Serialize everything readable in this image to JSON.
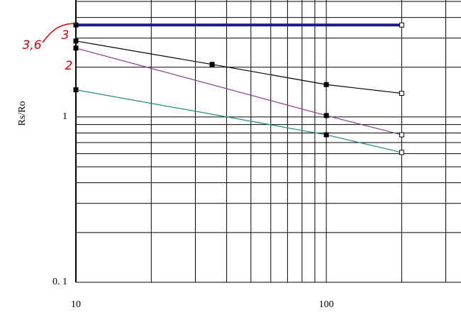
{
  "chart_data": {
    "type": "line",
    "y_label": "Rs/Ro",
    "xlim": [
      10,
      345
    ],
    "ylim": [
      0.1,
      5.1
    ],
    "log_x": true,
    "log_y": true,
    "grid": true,
    "xticks": [
      10,
      100
    ],
    "yticks": [
      {
        "value": 0.1,
        "label": "0. 1"
      },
      1
    ],
    "xgrid": [
      10,
      20,
      30,
      40,
      50,
      60,
      70,
      80,
      90,
      100,
      200,
      300
    ],
    "ygrid": [
      0.1,
      0.2,
      0.3,
      0.4,
      0.5,
      0.6,
      0.7,
      0.8,
      0.9,
      1,
      2,
      3,
      4,
      5
    ],
    "series": [
      {
        "color": "#1a1a8c",
        "width": 4,
        "x": [
          10,
          200
        ],
        "values": [
          3.6,
          3.6
        ]
      },
      {
        "color": "#000000",
        "width": 1.2,
        "x": [
          10,
          35,
          100,
          200
        ],
        "values": [
          2.88,
          2.08,
          1.57,
          1.39
        ]
      },
      {
        "color": "#8b3a96",
        "width": 1.2,
        "x": [
          10,
          100,
          200
        ],
        "values": [
          2.61,
          1.02,
          0.78
        ]
      },
      {
        "color": "#1f8a80",
        "width": 1.2,
        "x": [
          10,
          100,
          200
        ],
        "values": [
          1.46,
          0.78,
          0.61
        ]
      }
    ],
    "annotations": [
      "3,6",
      "3",
      "2"
    ]
  }
}
